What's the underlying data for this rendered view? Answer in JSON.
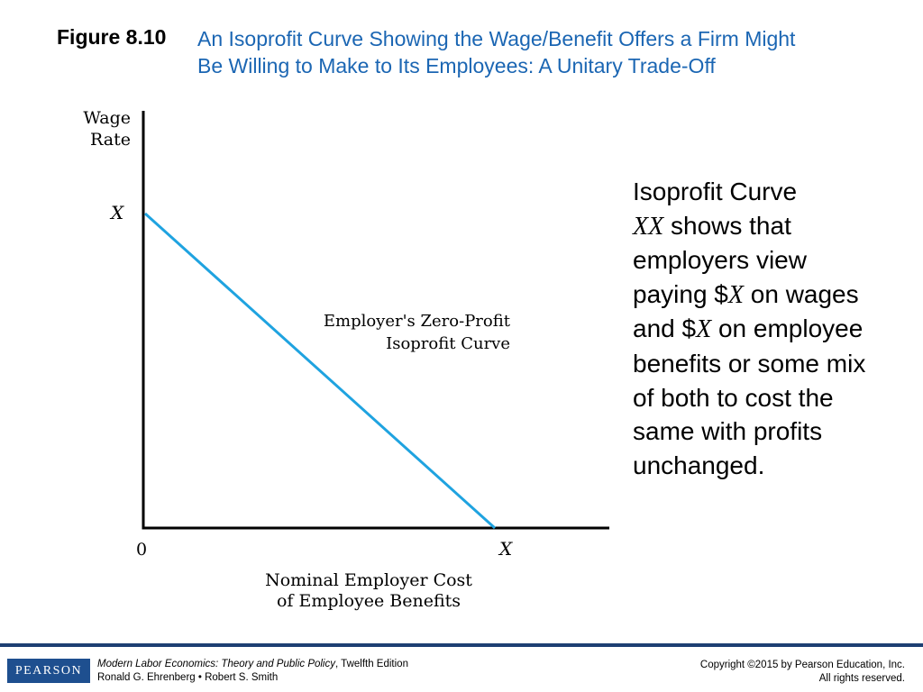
{
  "header": {
    "figure_label": "Figure 8.10",
    "title_line1": "An Isoprofit Curve Showing the Wage/Benefit Offers a Firm Might",
    "title_line2": "Be Willing to Make to Its Employees: A Unitary Trade-Off"
  },
  "diagram": {
    "y_axis_label_line1": "Wage",
    "y_axis_label_line2": "Rate",
    "y_intercept_label": "X",
    "origin_label": "0",
    "x_intercept_label": "X",
    "x_axis_label_line1": "Nominal Employer Cost",
    "x_axis_label_line2": "of Employee Benefits",
    "curve_label_line1": "Employer's Zero-Profit",
    "curve_label_line2": "Isoprofit Curve",
    "curve_color": "#1fa3e0"
  },
  "side_text": {
    "part1": "Isoprofit Curve",
    "part2_italic": "XX",
    "part3": " shows that employers view paying $",
    "part4_italic": "X",
    "part5": " on wages and $",
    "part6_italic": "X",
    "part7": " on employee benefits or some mix of both to cost the same with profits unchanged."
  },
  "footer": {
    "logo": "PEARSON",
    "book_title": "Modern Labor Economics: Theory and Public Policy",
    "edition": ", Twelfth Edition",
    "authors": "Ronald G. Ehrenberg • Robert S. Smith",
    "copyright_line1": "Copyright ©2015 by Pearson Education, Inc.",
    "copyright_line2": "All rights reserved."
  }
}
